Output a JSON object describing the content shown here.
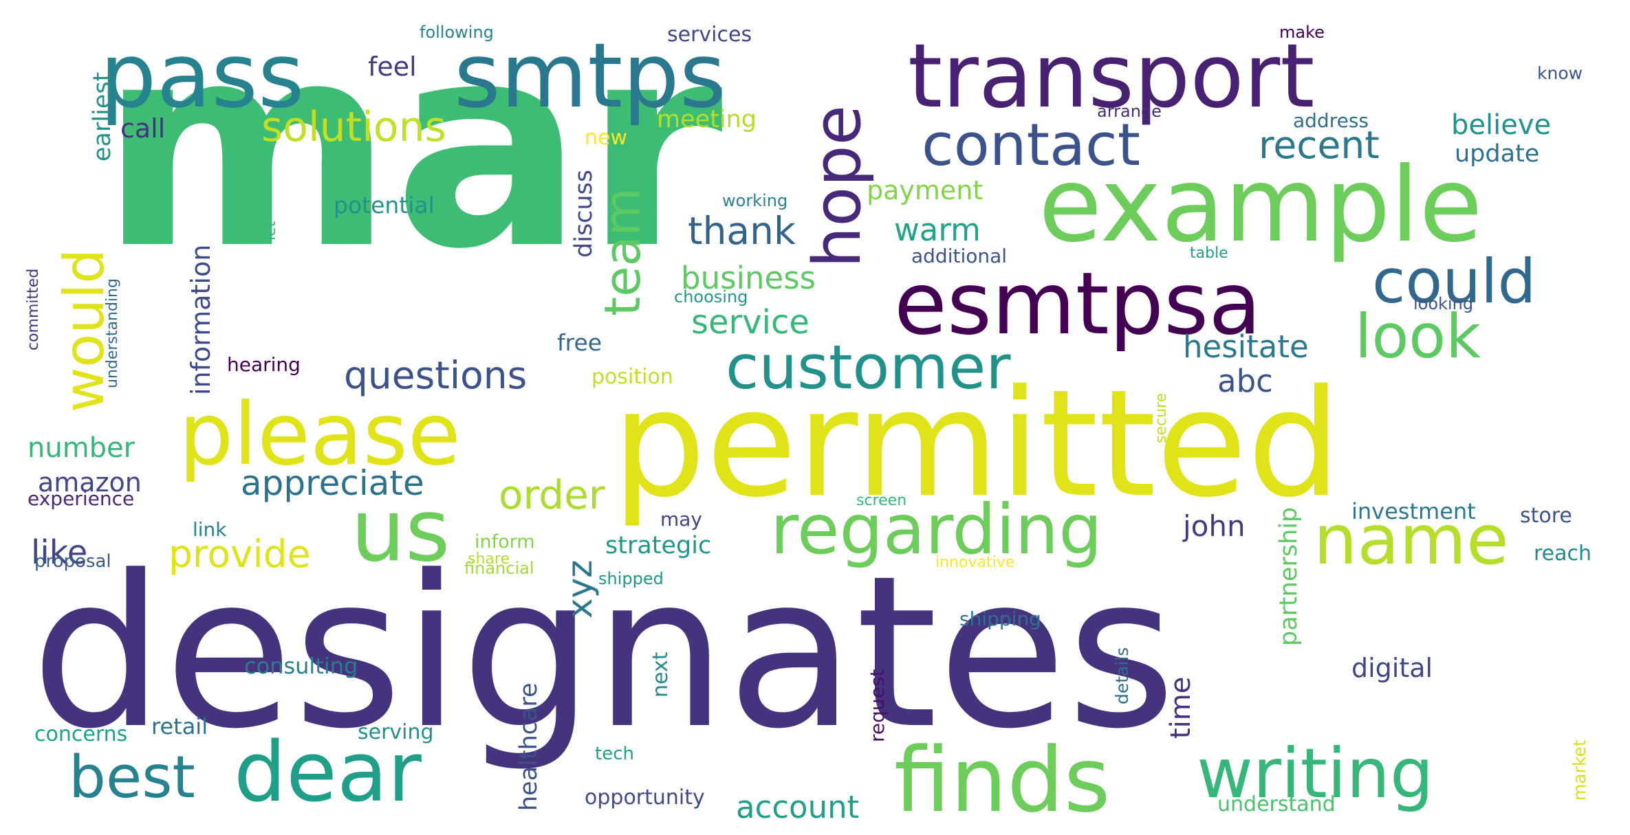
{
  "word_cloud": {
    "words": [
      {
        "text": "mar",
        "color": "#3dbc74"
      },
      {
        "text": "designates",
        "color": "#46337e"
      },
      {
        "text": "permitted",
        "color": "#dfe318"
      },
      {
        "text": "example",
        "color": "#6ccd5a"
      },
      {
        "text": "transport",
        "color": "#482173"
      },
      {
        "text": "pass",
        "color": "#26828e"
      },
      {
        "text": "smtps",
        "color": "#2a788e"
      },
      {
        "text": "esmtpsa",
        "color": "#440154"
      },
      {
        "text": "please",
        "color": "#dfe318"
      },
      {
        "text": "us",
        "color": "#6ccd5a"
      },
      {
        "text": "dear",
        "color": "#1f9e89"
      },
      {
        "text": "finds",
        "color": "#6ccd5a"
      },
      {
        "text": "writing",
        "color": "#35b779"
      },
      {
        "text": "regarding",
        "color": "#6ccd5a"
      },
      {
        "text": "name",
        "color": "#b5de2b"
      },
      {
        "text": "customer",
        "color": "#21918c"
      },
      {
        "text": "hope",
        "color": "#482878"
      },
      {
        "text": "contact",
        "color": "#3b528b"
      },
      {
        "text": "could",
        "color": "#31688e"
      },
      {
        "text": "look",
        "color": "#5ec962"
      },
      {
        "text": "best",
        "color": "#26828e"
      },
      {
        "text": "would",
        "color": "#dfe318"
      },
      {
        "text": "team",
        "color": "#5ec962"
      },
      {
        "text": "solutions",
        "color": "#c2df23"
      },
      {
        "text": "questions",
        "color": "#3b528b"
      },
      {
        "text": "appreciate",
        "color": "#2c728e"
      },
      {
        "text": "order",
        "color": "#addc30"
      },
      {
        "text": "provide",
        "color": "#dfe318"
      },
      {
        "text": "thank",
        "color": "#33638d"
      },
      {
        "text": "business",
        "color": "#5ec962"
      },
      {
        "text": "service",
        "color": "#35b779"
      },
      {
        "text": "warm",
        "color": "#20a386"
      },
      {
        "text": "payment",
        "color": "#84d44b"
      },
      {
        "text": "recent",
        "color": "#2a788e"
      },
      {
        "text": "believe",
        "color": "#21918c"
      },
      {
        "text": "update",
        "color": "#2c728e"
      },
      {
        "text": "hesitate",
        "color": "#2a788e"
      },
      {
        "text": "abc",
        "color": "#3b528b"
      },
      {
        "text": "account",
        "color": "#1f9e89"
      },
      {
        "text": "xyz",
        "color": "#2a788e"
      },
      {
        "text": "john",
        "color": "#443983"
      },
      {
        "text": "like",
        "color": "#414487"
      },
      {
        "text": "amazon",
        "color": "#414487"
      },
      {
        "text": "number",
        "color": "#35b779"
      },
      {
        "text": "information",
        "color": "#3e4a89"
      },
      {
        "text": "feel",
        "color": "#453781"
      },
      {
        "text": "call",
        "color": "#46337e"
      },
      {
        "text": "earliest",
        "color": "#21918c"
      },
      {
        "text": "meeting",
        "color": "#b5de2b"
      },
      {
        "text": "new",
        "color": "#fde725"
      },
      {
        "text": "discuss",
        "color": "#3e4989"
      },
      {
        "text": "potential",
        "color": "#21918c"
      },
      {
        "text": "free",
        "color": "#31688e"
      },
      {
        "text": "position",
        "color": "#c2df23"
      },
      {
        "text": "strategic",
        "color": "#1f988b"
      },
      {
        "text": "digital",
        "color": "#404688"
      },
      {
        "text": "investment",
        "color": "#2a788e"
      },
      {
        "text": "store",
        "color": "#3b528b"
      },
      {
        "text": "reach",
        "color": "#23898e"
      },
      {
        "text": "partnership",
        "color": "#5ec962"
      },
      {
        "text": "time",
        "color": "#46327e"
      },
      {
        "text": "healthcare",
        "color": "#3b528b"
      },
      {
        "text": "next",
        "color": "#23898e"
      },
      {
        "text": "may",
        "color": "#414487"
      },
      {
        "text": "shipping",
        "color": "#2c728e"
      },
      {
        "text": "experience",
        "color": "#482878"
      },
      {
        "text": "link",
        "color": "#26828e"
      },
      {
        "text": "inform",
        "color": "#84d44b"
      },
      {
        "text": "share",
        "color": "#b5de2b"
      },
      {
        "text": "financial",
        "color": "#a2da37"
      },
      {
        "text": "proposal",
        "color": "#38598c"
      },
      {
        "text": "shipped",
        "color": "#1f988b"
      },
      {
        "text": "innovative",
        "color": "#fde725"
      },
      {
        "text": "consulting",
        "color": "#287d8e"
      },
      {
        "text": "retail",
        "color": "#2c728e"
      },
      {
        "text": "concerns",
        "color": "#1fa187"
      },
      {
        "text": "serving",
        "color": "#21918c"
      },
      {
        "text": "tech",
        "color": "#1fa187"
      },
      {
        "text": "opportunity",
        "color": "#3e4a89"
      },
      {
        "text": "understand",
        "color": "#4ac16d"
      },
      {
        "text": "request",
        "color": "#471164"
      },
      {
        "text": "details",
        "color": "#2e6e8e"
      },
      {
        "text": "market",
        "color": "#d8e219"
      },
      {
        "text": "screen",
        "color": "#35b779"
      },
      {
        "text": "secure",
        "color": "#bddf26"
      },
      {
        "text": "following",
        "color": "#25848e"
      },
      {
        "text": "services",
        "color": "#404688"
      },
      {
        "text": "make",
        "color": "#440154"
      },
      {
        "text": "know",
        "color": "#3b528b"
      },
      {
        "text": "arrange",
        "color": "#472c7a"
      },
      {
        "text": "address",
        "color": "#2e6e8e"
      },
      {
        "text": "working",
        "color": "#26828e"
      },
      {
        "text": "let",
        "color": "#35b779"
      },
      {
        "text": "additional",
        "color": "#3b528b"
      },
      {
        "text": "choosing",
        "color": "#1f988b"
      },
      {
        "text": "table",
        "color": "#1fa187"
      },
      {
        "text": "looking",
        "color": "#3b528b"
      },
      {
        "text": "committed",
        "color": "#46337e"
      },
      {
        "text": "understanding",
        "color": "#30698e"
      },
      {
        "text": "hearing",
        "color": "#440154"
      }
    ]
  }
}
